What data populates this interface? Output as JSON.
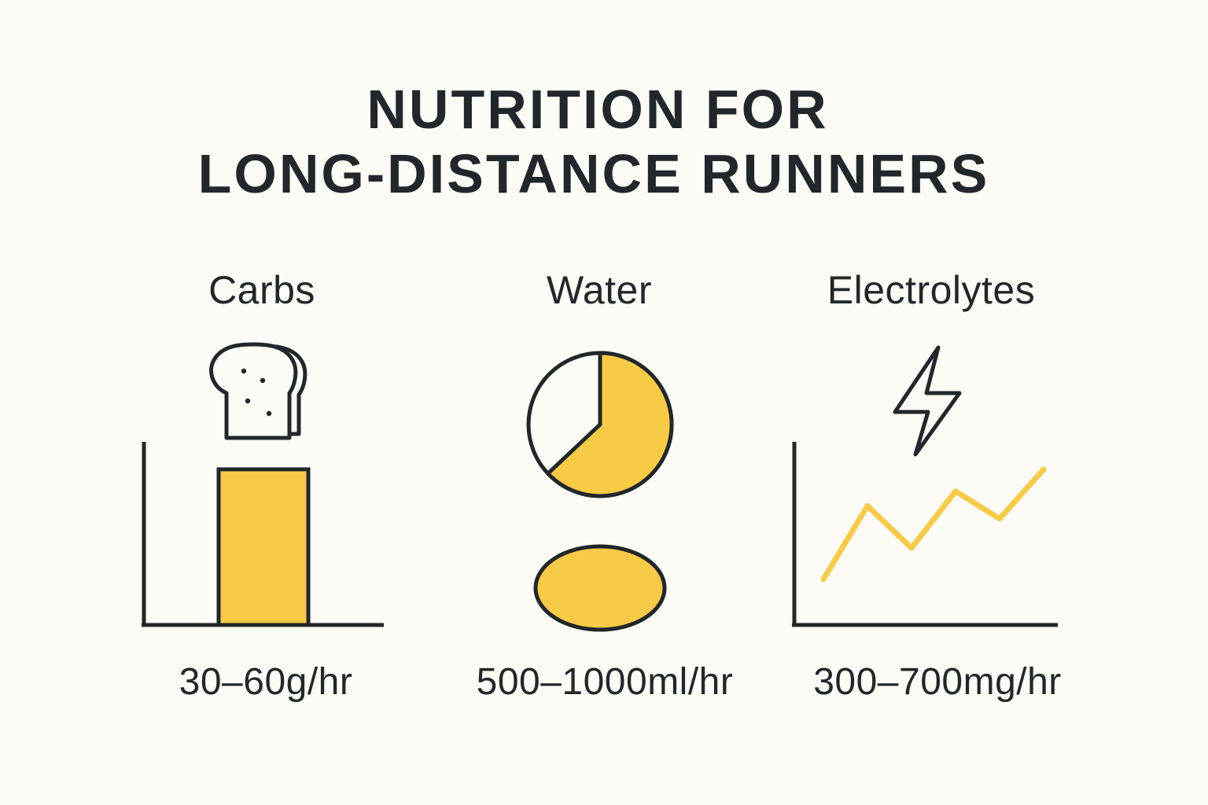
{
  "title": {
    "line1": "NUTRITION FOR",
    "line2": "LONG-DISTANCE RUNNERS"
  },
  "colors": {
    "background": "#fcfbf6",
    "ink": "#22272b",
    "accent": "#f7cb45"
  },
  "chart_data": [
    {
      "type": "bar",
      "title": "Carbs",
      "icon": "bread-icon",
      "value_label": "30–60g/hr",
      "categories": [
        ""
      ],
      "values": [
        0.85
      ],
      "ylim": [
        0,
        1
      ]
    },
    {
      "type": "pie",
      "title": "Water",
      "icon": "water-drop-icon",
      "value_label": "500–1000ml/hr",
      "values": [
        0.63,
        0.37
      ]
    },
    {
      "type": "line",
      "title": "Electrolytes",
      "icon": "lightning-icon",
      "value_label": "300–700mg/hr",
      "x": [
        0,
        1,
        2,
        3,
        4,
        5
      ],
      "y": [
        0.25,
        0.65,
        0.42,
        0.73,
        0.58,
        0.85
      ],
      "ylim": [
        0,
        1
      ]
    }
  ]
}
